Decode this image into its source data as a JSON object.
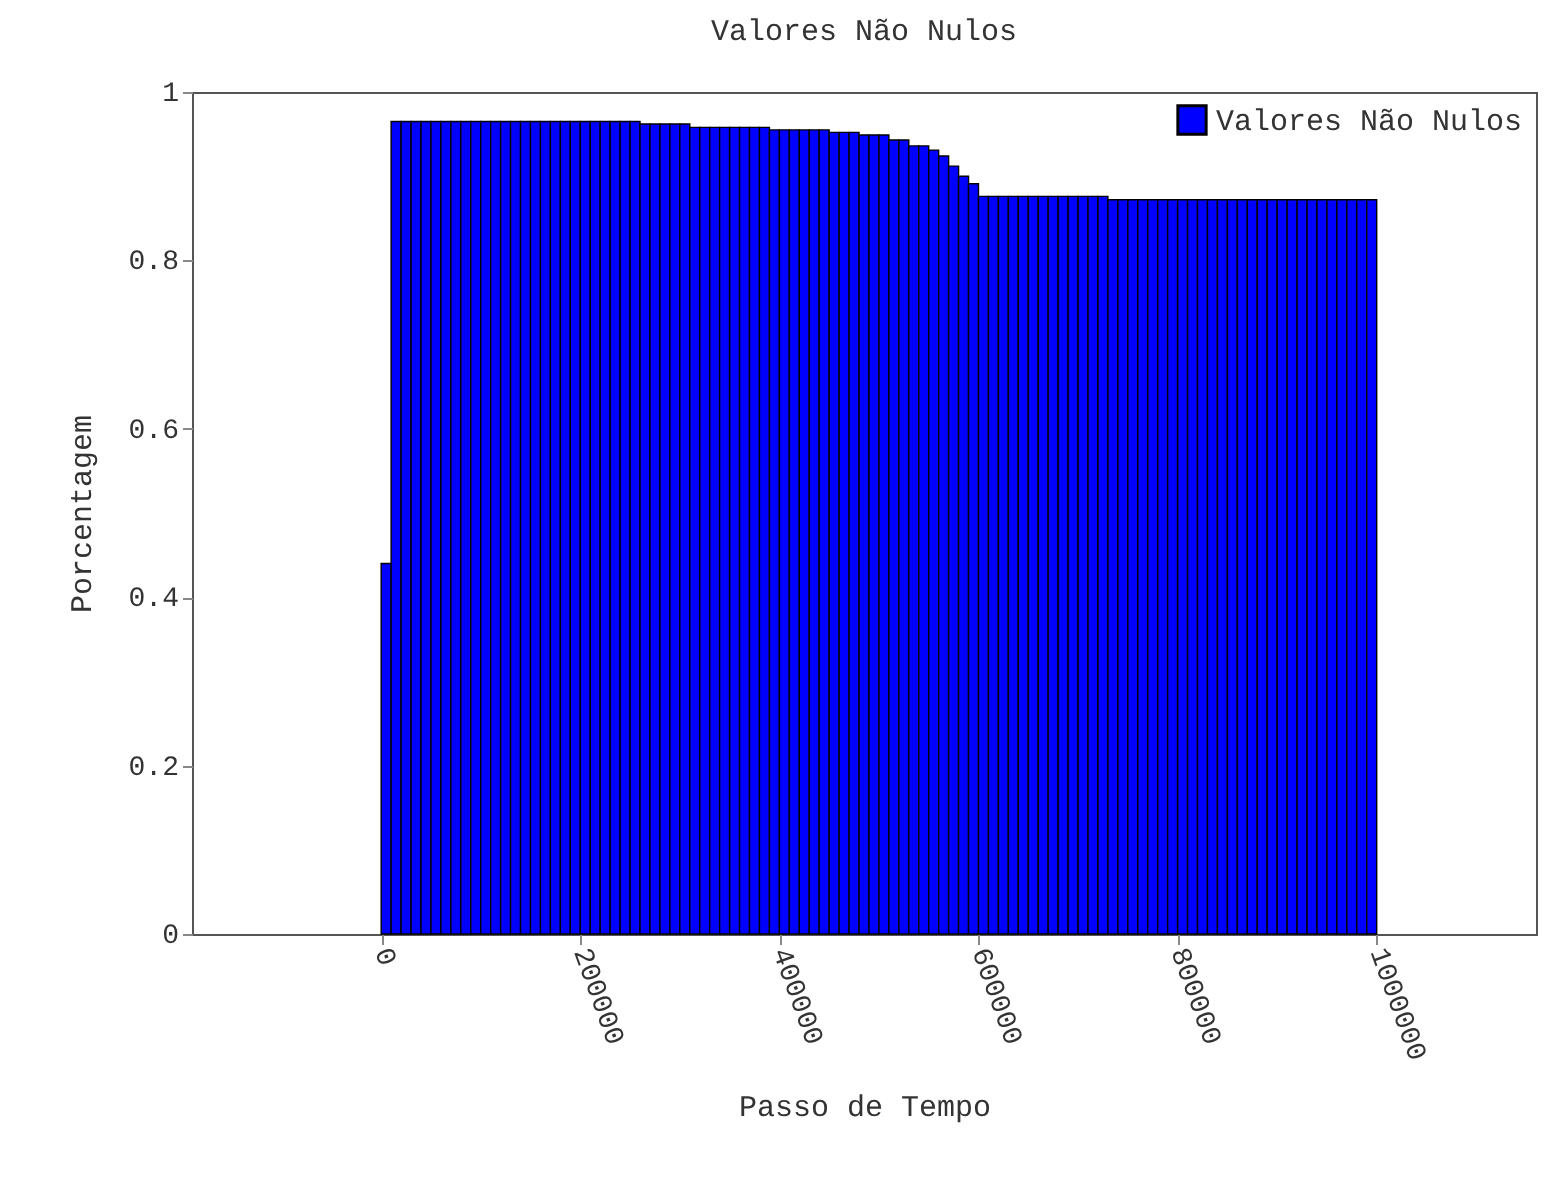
{
  "chart_data": {
    "type": "histogram",
    "title": "Valores Não Nulos",
    "xlabel": "Passo de Tempo",
    "ylabel": "Porcentagem",
    "bins": [
      0,
      10000,
      20000,
      30000,
      40000,
      50000,
      60000,
      70000,
      80000,
      90000,
      100000,
      110000,
      120000,
      130000,
      140000,
      150000,
      160000,
      170000,
      180000,
      190000,
      200000,
      210000,
      220000,
      230000,
      240000,
      250000,
      260000,
      270000,
      280000,
      290000,
      300000,
      310000,
      320000,
      330000,
      340000,
      350000,
      360000,
      370000,
      380000,
      390000,
      400000,
      410000,
      420000,
      430000,
      440000,
      450000,
      460000,
      470000,
      480000,
      490000,
      500000,
      510000,
      520000,
      530000,
      540000,
      550000,
      560000,
      570000,
      580000,
      590000,
      600000,
      610000,
      620000,
      630000,
      640000,
      650000,
      660000,
      670000,
      680000,
      690000,
      700000,
      710000,
      720000,
      730000,
      740000,
      750000,
      760000,
      770000,
      780000,
      790000,
      800000,
      810000,
      820000,
      830000,
      840000,
      850000,
      860000,
      870000,
      880000,
      890000,
      900000,
      910000,
      920000,
      930000,
      940000,
      950000,
      960000,
      970000,
      980000,
      990000,
      1000000
    ],
    "series": [
      {
        "name": "Valores Não Nulos",
        "color": "#0000ff",
        "values": [
          0.44,
          0.965,
          0.965,
          0.965,
          0.965,
          0.965,
          0.965,
          0.965,
          0.965,
          0.965,
          0.965,
          0.965,
          0.965,
          0.965,
          0.965,
          0.965,
          0.965,
          0.965,
          0.965,
          0.965,
          0.965,
          0.965,
          0.965,
          0.965,
          0.965,
          0.965,
          0.962,
          0.962,
          0.962,
          0.962,
          0.962,
          0.958,
          0.958,
          0.958,
          0.958,
          0.958,
          0.958,
          0.958,
          0.958,
          0.955,
          0.955,
          0.955,
          0.955,
          0.955,
          0.955,
          0.952,
          0.952,
          0.952,
          0.949,
          0.949,
          0.949,
          0.943,
          0.943,
          0.936,
          0.936,
          0.931,
          0.924,
          0.912,
          0.9,
          0.891,
          0.876,
          0.876,
          0.876,
          0.876,
          0.876,
          0.876,
          0.876,
          0.876,
          0.876,
          0.876,
          0.876,
          0.876,
          0.876,
          0.872,
          0.872,
          0.872,
          0.872,
          0.872,
          0.872,
          0.872,
          0.872,
          0.872,
          0.872,
          0.872,
          0.872,
          0.872,
          0.872,
          0.872,
          0.872,
          0.872,
          0.872,
          0.872,
          0.872,
          0.872,
          0.872,
          0.872,
          0.872,
          0.872,
          0.872,
          0.872
        ]
      }
    ],
    "xlim": [
      -190000,
      1160000
    ],
    "ylim": [
      0,
      1
    ],
    "xticks": [
      0,
      200000,
      400000,
      600000,
      800000,
      1000000
    ],
    "yticks": [
      0,
      0.2,
      0.4,
      0.6,
      0.8,
      1
    ],
    "legend": "top right"
  }
}
